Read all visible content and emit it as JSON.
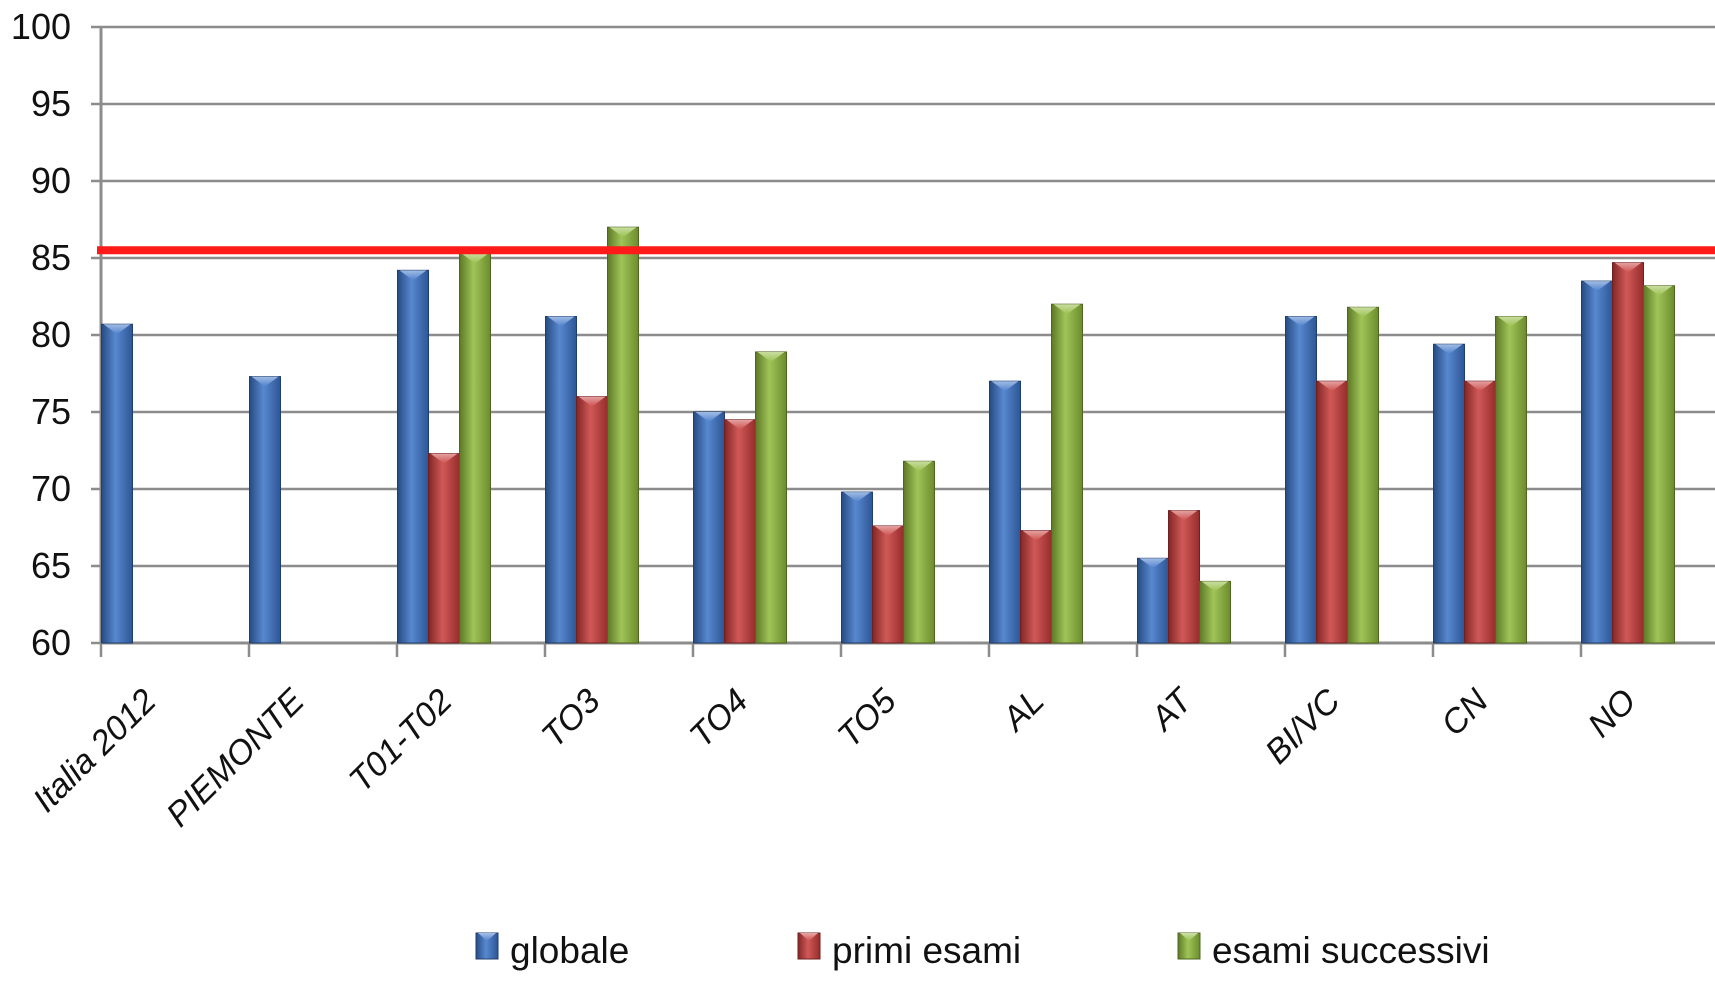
{
  "chart_data": {
    "type": "bar",
    "title": "",
    "xlabel": "",
    "ylabel": "",
    "ylim": [
      60,
      100
    ],
    "yticks": [
      "60",
      "65",
      "70",
      "75",
      "80",
      "85",
      "90",
      "95",
      "100"
    ],
    "grid": true,
    "legend_position": "bottom",
    "categories": [
      "Italia 2012",
      "PIEMONTE",
      "T01-T02",
      "TO3",
      "TO4",
      "TO5",
      "AL",
      "AT",
      "BI/VC",
      "CN",
      "NO"
    ],
    "series": [
      {
        "name": "globale",
        "color": "#3a73c8",
        "values": [
          80.7,
          77.3,
          84.2,
          81.2,
          75.0,
          69.8,
          77.0,
          65.5,
          81.2,
          79.4,
          83.5
        ]
      },
      {
        "name": "primi esami",
        "color": "#c83c3a",
        "values": [
          null,
          null,
          72.3,
          76.0,
          74.5,
          67.6,
          67.3,
          68.6,
          77.0,
          77.0,
          84.7
        ]
      },
      {
        "name": "esami successivi",
        "color": "#8fba3a",
        "values": [
          null,
          null,
          85.3,
          87.0,
          78.9,
          71.8,
          82.0,
          64.0,
          81.8,
          81.2,
          83.2
        ]
      }
    ],
    "reference_line": {
      "value": 85.5,
      "color": "#ff1a1a"
    }
  }
}
